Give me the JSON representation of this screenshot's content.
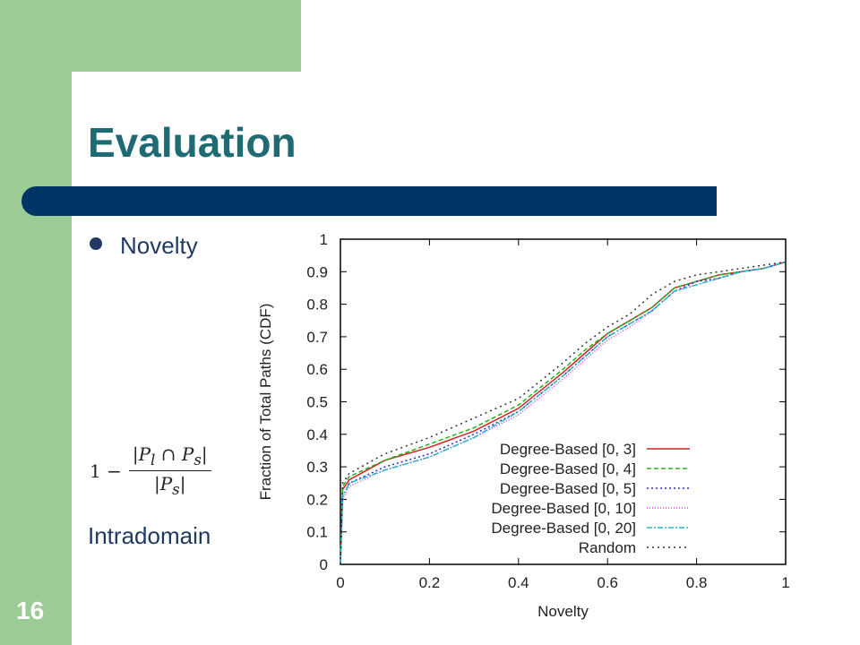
{
  "slide": {
    "title": "Evaluation",
    "bullet": "Novelty",
    "formula": {
      "lead": "1 −",
      "numerator": "|P",
      "numerator_sub": "l",
      "cap": " ∩ P",
      "cap_sub": "s",
      "close": "|",
      "denominator": "|P",
      "denominator_sub": "s",
      "denominator_close": "|"
    },
    "caption": "Intradomain",
    "page_number": "16"
  },
  "colors": {
    "sidebar": "#9ccc96",
    "title_bar": "#003366",
    "title_text": "#1e6b74",
    "body_text": "#1f3a63"
  },
  "chart_data": {
    "type": "line",
    "xlabel": "Novelty",
    "ylabel": "Fraction of Total Paths (CDF)",
    "xlim": [
      0,
      1
    ],
    "ylim": [
      0,
      1
    ],
    "xticks": [
      "0",
      "0.2",
      "0.4",
      "0.6",
      "0.8",
      "1"
    ],
    "yticks": [
      "0",
      "0.1",
      "0.2",
      "0.3",
      "0.4",
      "0.5",
      "0.6",
      "0.7",
      "0.8",
      "0.9",
      "1"
    ],
    "legend_position": "bottom-right",
    "series": [
      {
        "name": "Degree-Based  [0,  3]",
        "color": "#d62020",
        "dash": "",
        "x": [
          0,
          0.005,
          0.02,
          0.1,
          0.2,
          0.3,
          0.4,
          0.5,
          0.55,
          0.6,
          0.65,
          0.7,
          0.75,
          0.8,
          0.85,
          0.9,
          0.95,
          1.0
        ],
        "y": [
          0,
          0.23,
          0.26,
          0.32,
          0.36,
          0.41,
          0.48,
          0.59,
          0.65,
          0.71,
          0.75,
          0.79,
          0.85,
          0.87,
          0.89,
          0.9,
          0.91,
          0.93
        ]
      },
      {
        "name": "Degree-Based  [0,  4]",
        "color": "#1db41d",
        "dash": "5,3",
        "x": [
          0,
          0.005,
          0.02,
          0.1,
          0.2,
          0.3,
          0.4,
          0.5,
          0.55,
          0.6,
          0.65,
          0.7,
          0.75,
          0.8,
          0.85,
          0.9,
          0.95,
          1.0
        ],
        "y": [
          0,
          0.24,
          0.27,
          0.32,
          0.37,
          0.42,
          0.49,
          0.6,
          0.66,
          0.71,
          0.75,
          0.79,
          0.85,
          0.87,
          0.89,
          0.9,
          0.91,
          0.93
        ]
      },
      {
        "name": "Degree-Based  [0,  5]",
        "color": "#2a2ac8",
        "dash": "2,3",
        "x": [
          0,
          0.005,
          0.02,
          0.1,
          0.2,
          0.3,
          0.4,
          0.5,
          0.55,
          0.6,
          0.65,
          0.7,
          0.75,
          0.8,
          0.85,
          0.9,
          0.95,
          1.0
        ],
        "y": [
          0,
          0.21,
          0.25,
          0.3,
          0.34,
          0.4,
          0.47,
          0.58,
          0.64,
          0.7,
          0.74,
          0.78,
          0.84,
          0.87,
          0.88,
          0.9,
          0.91,
          0.93
        ]
      },
      {
        "name": "Degree-Based [0, 10]",
        "color": "#e040e0",
        "dash": "1,2",
        "x": [
          0,
          0.005,
          0.02,
          0.1,
          0.2,
          0.3,
          0.4,
          0.5,
          0.55,
          0.6,
          0.65,
          0.7,
          0.75,
          0.8,
          0.85,
          0.9,
          0.95,
          1.0
        ],
        "y": [
          0,
          0.2,
          0.24,
          0.29,
          0.33,
          0.39,
          0.46,
          0.57,
          0.63,
          0.69,
          0.73,
          0.78,
          0.84,
          0.86,
          0.88,
          0.9,
          0.91,
          0.93
        ]
      },
      {
        "name": "Degree-Based [0, 20]",
        "color": "#20b8c8",
        "dash": "6,2,2,2",
        "x": [
          0,
          0.005,
          0.02,
          0.1,
          0.2,
          0.3,
          0.4,
          0.5,
          0.55,
          0.6,
          0.65,
          0.7,
          0.75,
          0.8,
          0.85,
          0.9,
          0.95,
          1.0
        ],
        "y": [
          0,
          0.21,
          0.25,
          0.29,
          0.33,
          0.39,
          0.47,
          0.58,
          0.64,
          0.7,
          0.74,
          0.78,
          0.84,
          0.86,
          0.88,
          0.9,
          0.91,
          0.93
        ]
      },
      {
        "name": "Random",
        "color": "#333333",
        "dash": "2,4",
        "x": [
          0,
          0.005,
          0.02,
          0.1,
          0.2,
          0.3,
          0.4,
          0.5,
          0.55,
          0.6,
          0.65,
          0.7,
          0.75,
          0.8,
          0.85,
          0.9,
          0.95,
          1.0
        ],
        "y": [
          0,
          0.25,
          0.28,
          0.34,
          0.39,
          0.45,
          0.51,
          0.62,
          0.68,
          0.73,
          0.77,
          0.83,
          0.87,
          0.89,
          0.9,
          0.91,
          0.92,
          0.93
        ]
      }
    ]
  }
}
